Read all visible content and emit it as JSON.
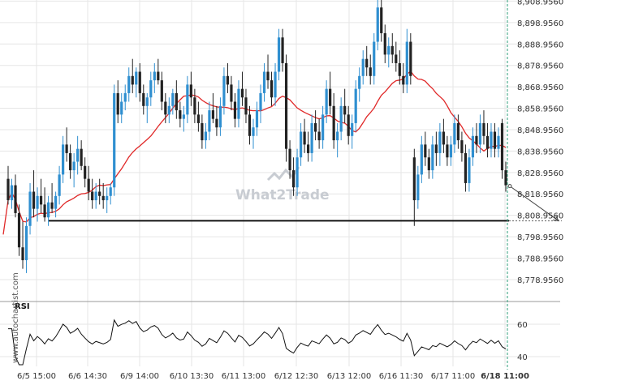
{
  "chart_data": [
    {
      "type": "candlestick",
      "title": "",
      "y_axis": {
        "position": "right",
        "ticks": [
          "8,908.9560",
          "8,898.9560",
          "8,888.9560",
          "8,878.9560",
          "8,868.9560",
          "8,858.9560",
          "8,848.9560",
          "8,838.9560",
          "8,828.9560",
          "8,818.9560",
          "8,808.9560",
          "8,798.9560",
          "8,788.9560",
          "8,778.9560"
        ],
        "ylim": [
          8772.5,
          8909.5
        ]
      },
      "x_axis": {
        "ticks": [
          "6/5 15:00",
          "6/6 14:30",
          "6/9 14:00",
          "6/10 13:30",
          "6/11 13:00",
          "6/12 12:30",
          "6/13 12:00",
          "6/16 11:30",
          "6/17 11:00",
          "6/18 11:00"
        ],
        "highlight": "6/18 11:00"
      },
      "colors": {
        "up": "#2f8fd0",
        "down": "#222222",
        "ma": "#e02828",
        "support": "#111111",
        "grid": "#e6e6e6"
      },
      "support_level": 8806.4,
      "projection": {
        "from": 8822.6,
        "to": 8806.4
      },
      "ohlc": [
        [
          8826,
          8832,
          8814,
          8816
        ],
        [
          8816,
          8826,
          8812,
          8823
        ],
        [
          8823,
          8828,
          8808,
          8810
        ],
        [
          8810,
          8814,
          8790,
          8794
        ],
        [
          8794,
          8806,
          8784,
          8788
        ],
        [
          8788,
          8808,
          8782,
          8804
        ],
        [
          8804,
          8824,
          8800,
          8820
        ],
        [
          8820,
          8830,
          8808,
          8812
        ],
        [
          8812,
          8822,
          8806,
          8818
        ],
        [
          8818,
          8826,
          8810,
          8814
        ],
        [
          8814,
          8822,
          8806,
          8808
        ],
        [
          8808,
          8818,
          8804,
          8815
        ],
        [
          8815,
          8824,
          8810,
          8812
        ],
        [
          8812,
          8820,
          8808,
          8818
        ],
        [
          8818,
          8832,
          8814,
          8828
        ],
        [
          8828,
          8846,
          8824,
          8842
        ],
        [
          8842,
          8850,
          8834,
          8838
        ],
        [
          8838,
          8842,
          8826,
          8830
        ],
        [
          8830,
          8838,
          8822,
          8834
        ],
        [
          8834,
          8846,
          8828,
          8840
        ],
        [
          8840,
          8844,
          8830,
          8832
        ],
        [
          8832,
          8836,
          8822,
          8826
        ],
        [
          8826,
          8832,
          8816,
          8820
        ],
        [
          8820,
          8826,
          8812,
          8816
        ],
        [
          8816,
          8824,
          8812,
          8820
        ],
        [
          8820,
          8826,
          8814,
          8818
        ],
        [
          8818,
          8824,
          8812,
          8816
        ],
        [
          8816,
          8822,
          8810,
          8818
        ],
        [
          8818,
          8824,
          8814,
          8822
        ],
        [
          8822,
          8870,
          8818,
          8866
        ],
        [
          8866,
          8872,
          8852,
          8856
        ],
        [
          8856,
          8866,
          8852,
          8862
        ],
        [
          8862,
          8870,
          8858,
          8866
        ],
        [
          8866,
          8878,
          8862,
          8874
        ],
        [
          8874,
          8882,
          8866,
          8870
        ],
        [
          8870,
          8878,
          8864,
          8876
        ],
        [
          8876,
          8880,
          8862,
          8866
        ],
        [
          8866,
          8870,
          8856,
          8860
        ],
        [
          8860,
          8866,
          8852,
          8864
        ],
        [
          8864,
          8876,
          8860,
          8872
        ],
        [
          8872,
          8880,
          8866,
          8876
        ],
        [
          8876,
          8882,
          8870,
          8872
        ],
        [
          8872,
          8876,
          8858,
          8862
        ],
        [
          8862,
          8866,
          8852,
          8856
        ],
        [
          8856,
          8864,
          8852,
          8860
        ],
        [
          8860,
          8868,
          8856,
          8866
        ],
        [
          8866,
          8872,
          8854,
          8858
        ],
        [
          8858,
          8862,
          8850,
          8854
        ],
        [
          8854,
          8860,
          8848,
          8856
        ],
        [
          8856,
          8874,
          8852,
          8870
        ],
        [
          8870,
          8876,
          8860,
          8864
        ],
        [
          8864,
          8868,
          8852,
          8856
        ],
        [
          8856,
          8862,
          8848,
          8852
        ],
        [
          8852,
          8856,
          8840,
          8844
        ],
        [
          8844,
          8852,
          8840,
          8848
        ],
        [
          8848,
          8862,
          8844,
          8858
        ],
        [
          8858,
          8866,
          8852,
          8854
        ],
        [
          8854,
          8860,
          8846,
          8850
        ],
        [
          8850,
          8864,
          8846,
          8860
        ],
        [
          8860,
          8878,
          8856,
          8874
        ],
        [
          8874,
          8880,
          8866,
          8870
        ],
        [
          8870,
          8874,
          8858,
          8862
        ],
        [
          8862,
          8866,
          8850,
          8854
        ],
        [
          8854,
          8872,
          8850,
          8868
        ],
        [
          8868,
          8876,
          8860,
          8864
        ],
        [
          8864,
          8868,
          8852,
          8856
        ],
        [
          8856,
          8860,
          8842,
          8846
        ],
        [
          8846,
          8854,
          8840,
          8850
        ],
        [
          8850,
          8862,
          8846,
          8858
        ],
        [
          8858,
          8870,
          8852,
          8866
        ],
        [
          8866,
          8880,
          8862,
          8876
        ],
        [
          8876,
          8884,
          8868,
          8872
        ],
        [
          8872,
          8876,
          8860,
          8864
        ],
        [
          8864,
          8880,
          8860,
          8876
        ],
        [
          8876,
          8896,
          8872,
          8892
        ],
        [
          8892,
          8896,
          8876,
          8880
        ],
        [
          8880,
          8884,
          8834,
          8840
        ],
        [
          8840,
          8844,
          8826,
          8830
        ],
        [
          8830,
          8836,
          8818,
          8822
        ],
        [
          8822,
          8840,
          8818,
          8836
        ],
        [
          8836,
          8852,
          8832,
          8848
        ],
        [
          8848,
          8854,
          8838,
          8842
        ],
        [
          8842,
          8848,
          8834,
          8838
        ],
        [
          8838,
          8856,
          8834,
          8852
        ],
        [
          8852,
          8858,
          8844,
          8848
        ],
        [
          8848,
          8854,
          8840,
          8844
        ],
        [
          8844,
          8860,
          8840,
          8856
        ],
        [
          8856,
          8872,
          8852,
          8868
        ],
        [
          8868,
          8876,
          8856,
          8860
        ],
        [
          8860,
          8866,
          8840,
          8844
        ],
        [
          8844,
          8852,
          8836,
          8848
        ],
        [
          8848,
          8864,
          8844,
          8860
        ],
        [
          8860,
          8868,
          8852,
          8856
        ],
        [
          8856,
          8860,
          8842,
          8846
        ],
        [
          8846,
          8856,
          8840,
          8852
        ],
        [
          8852,
          8872,
          8848,
          8868
        ],
        [
          8868,
          8878,
          8862,
          8874
        ],
        [
          8874,
          8886,
          8870,
          8882
        ],
        [
          8882,
          8888,
          8874,
          8878
        ],
        [
          8878,
          8884,
          8870,
          8874
        ],
        [
          8874,
          8894,
          8870,
          8890
        ],
        [
          8890,
          8912,
          8886,
          8906
        ],
        [
          8906,
          8910,
          8890,
          8894
        ],
        [
          8894,
          8898,
          8880,
          8884
        ],
        [
          8884,
          8892,
          8878,
          8888
        ],
        [
          8888,
          8894,
          8880,
          8884
        ],
        [
          8884,
          8890,
          8876,
          8880
        ],
        [
          8880,
          8886,
          8870,
          8874
        ],
        [
          8874,
          8880,
          8866,
          8870
        ],
        [
          8870,
          8896,
          8866,
          8890
        ],
        [
          8890,
          8894,
          8870,
          8874
        ],
        [
          8836,
          8840,
          8804,
          8816
        ],
        [
          8816,
          8832,
          8812,
          8828
        ],
        [
          8828,
          8846,
          8824,
          8842
        ],
        [
          8842,
          8848,
          8832,
          8836
        ],
        [
          8836,
          8840,
          8826,
          8830
        ],
        [
          8830,
          8846,
          8826,
          8842
        ],
        [
          8842,
          8848,
          8832,
          8838
        ],
        [
          8838,
          8852,
          8832,
          8848
        ],
        [
          8848,
          8854,
          8838,
          8842
        ],
        [
          8842,
          8846,
          8832,
          8836
        ],
        [
          8836,
          8846,
          8832,
          8842
        ],
        [
          8842,
          8856,
          8838,
          8852
        ],
        [
          8852,
          8856,
          8840,
          8844
        ],
        [
          8844,
          8848,
          8834,
          8838
        ],
        [
          8838,
          8842,
          8820,
          8824
        ],
        [
          8824,
          8840,
          8820,
          8836
        ],
        [
          8836,
          8850,
          8832,
          8846
        ],
        [
          8846,
          8852,
          8838,
          8842
        ],
        [
          8842,
          8856,
          8838,
          8852
        ],
        [
          8852,
          8858,
          8842,
          8846
        ],
        [
          8846,
          8852,
          8836,
          8840
        ],
        [
          8840,
          8852,
          8836,
          8848
        ],
        [
          8848,
          8852,
          8836,
          8840
        ],
        [
          8840,
          8850,
          8836,
          8846
        ],
        [
          8852,
          8854,
          8826,
          8830
        ],
        [
          8830,
          8834,
          8820,
          8823
        ]
      ]
    },
    {
      "type": "line",
      "label": "RSI",
      "y_ticks": [
        "60",
        "40"
      ],
      "ylim": [
        34,
        74
      ]
    }
  ],
  "watermark": "What2Trade",
  "side_text": "www.autochartist.com"
}
